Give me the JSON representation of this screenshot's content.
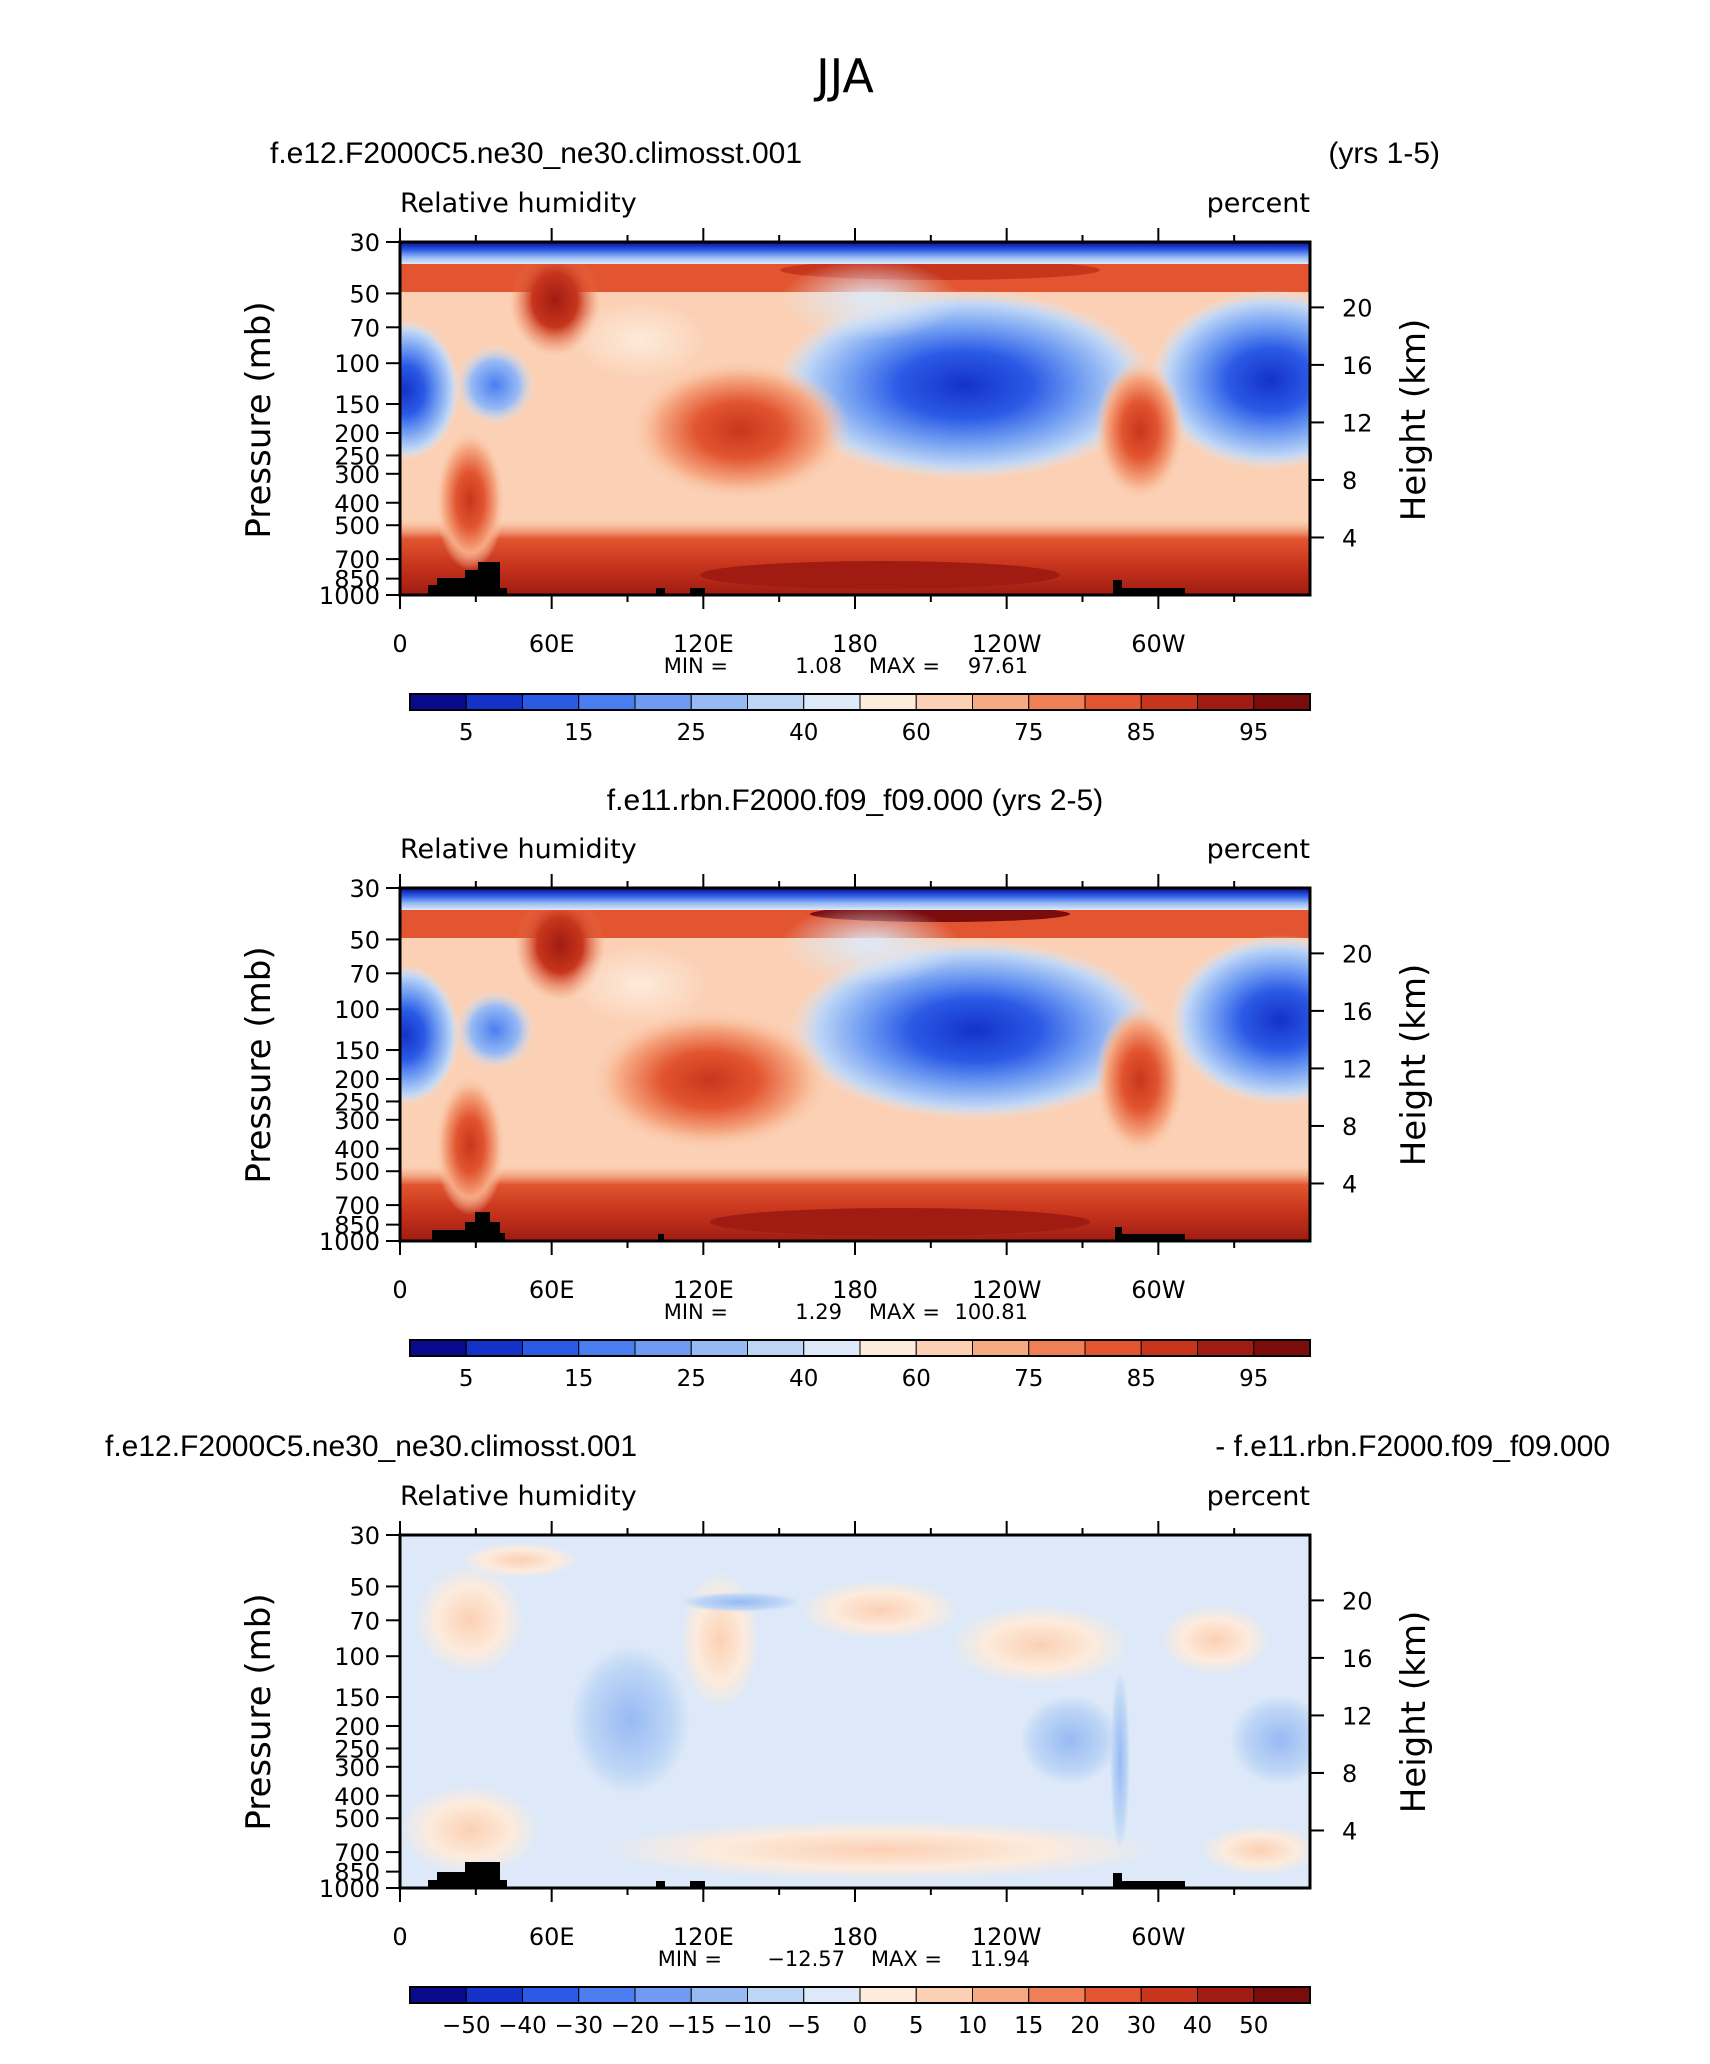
{
  "figure_title": "JJA",
  "chart_data": [
    {
      "type": "heatmap",
      "case_left": "f.e12.F2000C5.ne30_ne30.climosst.001",
      "case_right": "(yrs 1-5)",
      "variable": "Relative humidity",
      "units": "percent",
      "ylabel_left": "Pressure (mb)",
      "ylabel_right": "Height (km)",
      "x_ticks": [
        "0",
        "60E",
        "120E",
        "180",
        "120W",
        "60W"
      ],
      "x_tick_lons": [
        0,
        60,
        120,
        180,
        240,
        300
      ],
      "xlim": [
        0,
        360
      ],
      "pressure_ticks": [
        "30",
        "50",
        "70",
        "100",
        "150",
        "200",
        "250",
        "300",
        "400",
        "500",
        "700",
        "850",
        "1000"
      ],
      "pressure_values": [
        30,
        50,
        70,
        100,
        150,
        200,
        250,
        300,
        400,
        500,
        700,
        850,
        1000
      ],
      "height_ticks": [
        "20",
        "16",
        "12",
        "8",
        "4"
      ],
      "height_values": [
        20,
        16,
        12,
        8,
        4
      ],
      "min_label": "MIN =",
      "min_value": "1.08",
      "max_label": "MAX =",
      "max_value": "97.61",
      "colorbar_levels": [
        "5",
        "10",
        "15",
        "20",
        "25",
        "30",
        "40",
        "50",
        "60",
        "70",
        "75",
        "80",
        "85",
        "90",
        "95"
      ],
      "colorbar_labels": [
        "5",
        "15",
        "25",
        "40",
        "60",
        "75",
        "85",
        "95"
      ],
      "colors": [
        "#0a0a8c",
        "#1432c8",
        "#2b5ae6",
        "#4a7ef0",
        "#6f9cf2",
        "#97baf4",
        "#bed6f6",
        "#dde9f8",
        "#fdebdc",
        "#fbd0b4",
        "#f6aa84",
        "#ef7f55",
        "#e25530",
        "#c8351d",
        "#a01c12",
        "#7a0c0c"
      ]
    },
    {
      "type": "heatmap",
      "case_center": "f.e11.rbn.F2000.f09_f09.000 (yrs 2-5)",
      "variable": "Relative humidity",
      "units": "percent",
      "ylabel_left": "Pressure (mb)",
      "ylabel_right": "Height (km)",
      "x_ticks": [
        "0",
        "60E",
        "120E",
        "180",
        "120W",
        "60W"
      ],
      "x_tick_lons": [
        0,
        60,
        120,
        180,
        240,
        300
      ],
      "xlim": [
        0,
        360
      ],
      "pressure_ticks": [
        "30",
        "50",
        "70",
        "100",
        "150",
        "200",
        "250",
        "300",
        "400",
        "500",
        "700",
        "850",
        "1000"
      ],
      "pressure_values": [
        30,
        50,
        70,
        100,
        150,
        200,
        250,
        300,
        400,
        500,
        700,
        850,
        1000
      ],
      "height_ticks": [
        "20",
        "16",
        "12",
        "8",
        "4"
      ],
      "height_values": [
        20,
        16,
        12,
        8,
        4
      ],
      "min_label": "MIN =",
      "min_value": "1.29",
      "max_label": "MAX =",
      "max_value": "100.81",
      "colorbar_levels": [
        "5",
        "10",
        "15",
        "20",
        "25",
        "30",
        "40",
        "50",
        "60",
        "70",
        "75",
        "80",
        "85",
        "90",
        "95"
      ],
      "colorbar_labels": [
        "5",
        "15",
        "25",
        "40",
        "60",
        "75",
        "85",
        "95"
      ],
      "colors": [
        "#0a0a8c",
        "#1432c8",
        "#2b5ae6",
        "#4a7ef0",
        "#6f9cf2",
        "#97baf4",
        "#bed6f6",
        "#dde9f8",
        "#fdebdc",
        "#fbd0b4",
        "#f6aa84",
        "#ef7f55",
        "#e25530",
        "#c8351d",
        "#a01c12",
        "#7a0c0c"
      ]
    },
    {
      "type": "heatmap",
      "case_left": "f.e12.F2000C5.ne30_ne30.climosst.001",
      "case_right": "- f.e11.rbn.F2000.f09_f09.000",
      "variable": "Relative humidity",
      "units": "percent",
      "ylabel_left": "Pressure (mb)",
      "ylabel_right": "Height (km)",
      "x_ticks": [
        "0",
        "60E",
        "120E",
        "180",
        "120W",
        "60W"
      ],
      "x_tick_lons": [
        0,
        60,
        120,
        180,
        240,
        300
      ],
      "xlim": [
        0,
        360
      ],
      "pressure_ticks": [
        "30",
        "50",
        "70",
        "100",
        "150",
        "200",
        "250",
        "300",
        "400",
        "500",
        "700",
        "850",
        "1000"
      ],
      "pressure_values": [
        30,
        50,
        70,
        100,
        150,
        200,
        250,
        300,
        400,
        500,
        700,
        850,
        1000
      ],
      "height_ticks": [
        "20",
        "16",
        "12",
        "8",
        "4"
      ],
      "height_values": [
        20,
        16,
        12,
        8,
        4
      ],
      "min_label": "MIN =",
      "min_value": "−12.57",
      "max_label": "MAX =",
      "max_value": "11.94",
      "colorbar_levels": [
        "−50",
        "−40",
        "−30",
        "−20",
        "−15",
        "−10",
        "−5",
        "0",
        "5",
        "10",
        "15",
        "20",
        "30",
        "40",
        "50"
      ],
      "colorbar_labels": [
        "−50",
        "−40",
        "−30",
        "−20",
        "−15",
        "−10",
        "−5",
        "0",
        "5",
        "10",
        "15",
        "20",
        "30",
        "40",
        "50"
      ],
      "colors": [
        "#0a0a8c",
        "#1432c8",
        "#2b5ae6",
        "#4a7ef0",
        "#6f9cf2",
        "#97baf4",
        "#bed6f6",
        "#dde9f8",
        "#fdebdc",
        "#fbd0b4",
        "#f6aa84",
        "#ef7f55",
        "#e25530",
        "#c8351d",
        "#a01c12",
        "#7a0c0c"
      ]
    }
  ]
}
